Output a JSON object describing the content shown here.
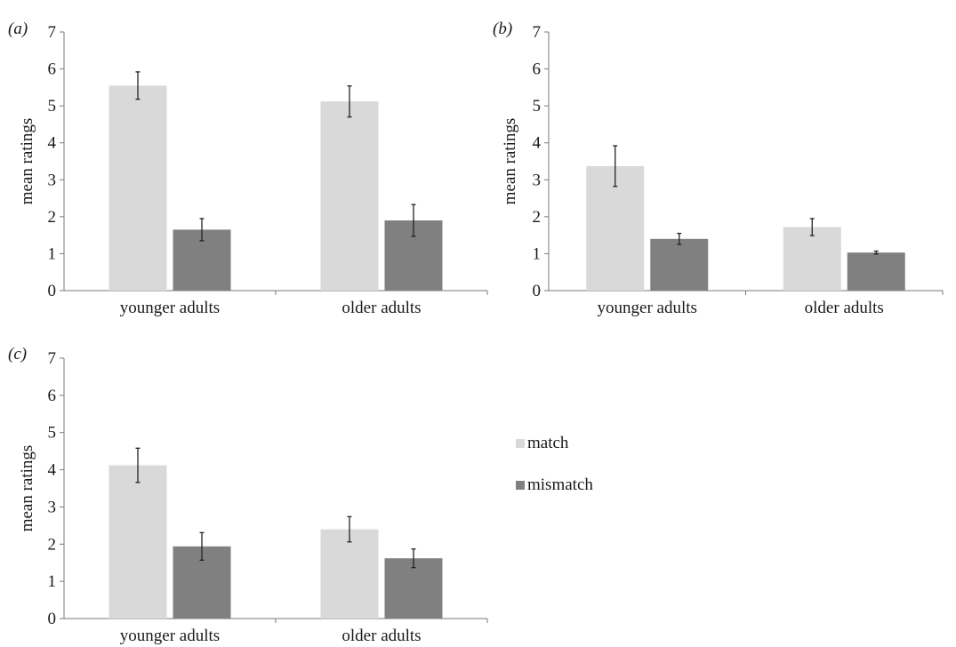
{
  "colors": {
    "match": "#d9d9d9",
    "mismatch": "#808080"
  },
  "legend": [
    {
      "key": "match",
      "label": "match"
    },
    {
      "key": "mismatch",
      "label": "mismatch"
    }
  ],
  "chart_data": [
    {
      "type": "bar",
      "panel_label": "(a)",
      "ylabel": "mean ratings",
      "ylim": [
        0,
        7
      ],
      "yticks": [
        0,
        1,
        2,
        3,
        4,
        5,
        6,
        7
      ],
      "categories": [
        "younger adults",
        "older adults"
      ],
      "series": [
        {
          "name": "match",
          "values": [
            5.55,
            5.12
          ],
          "errors": [
            0.37,
            0.42
          ]
        },
        {
          "name": "mismatch",
          "values": [
            1.65,
            1.9
          ],
          "errors": [
            0.3,
            0.43
          ]
        }
      ]
    },
    {
      "type": "bar",
      "panel_label": "(b)",
      "ylabel": "mean ratings",
      "ylim": [
        0,
        7
      ],
      "yticks": [
        0,
        1,
        2,
        3,
        4,
        5,
        6,
        7
      ],
      "categories": [
        "younger adults",
        "older adults"
      ],
      "series": [
        {
          "name": "match",
          "values": [
            3.37,
            1.72
          ],
          "errors": [
            0.55,
            0.23
          ]
        },
        {
          "name": "mismatch",
          "values": [
            1.4,
            1.03
          ],
          "errors": [
            0.15,
            0.04
          ]
        }
      ]
    },
    {
      "type": "bar",
      "panel_label": "(c)",
      "ylabel": "mean ratings",
      "ylim": [
        0,
        7
      ],
      "yticks": [
        0,
        1,
        2,
        3,
        4,
        5,
        6,
        7
      ],
      "categories": [
        "younger adults",
        "older adults"
      ],
      "series": [
        {
          "name": "match",
          "values": [
            4.12,
            2.4
          ],
          "errors": [
            0.46,
            0.34
          ]
        },
        {
          "name": "mismatch",
          "values": [
            1.94,
            1.62
          ],
          "errors": [
            0.37,
            0.25
          ]
        }
      ]
    }
  ]
}
